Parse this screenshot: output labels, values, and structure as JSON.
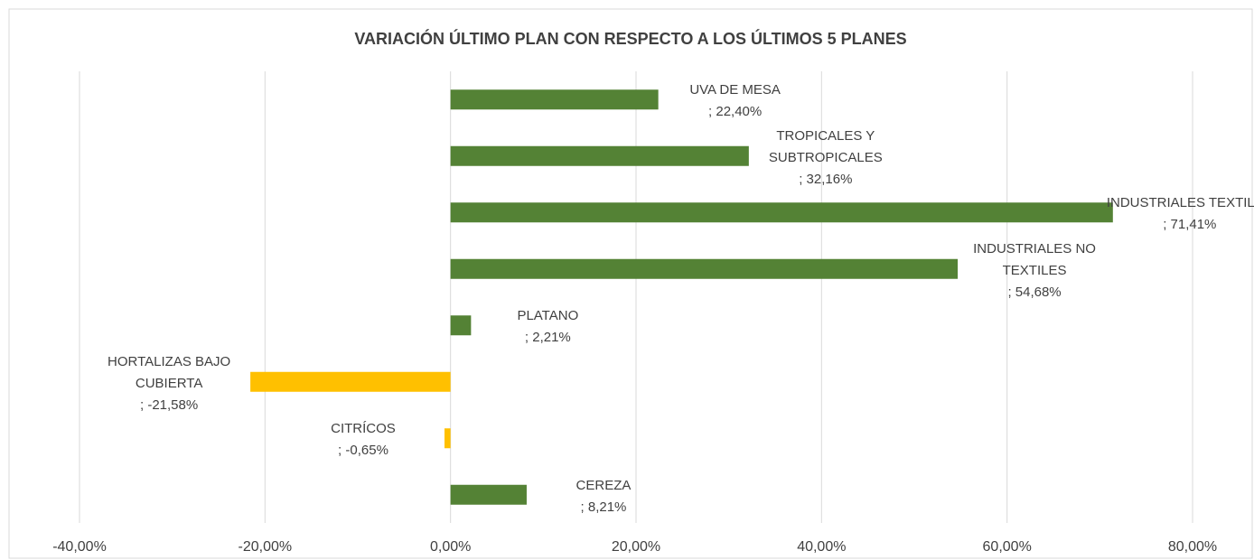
{
  "chart_data": {
    "type": "barh",
    "title": "VARIACIÓN  ÚLTIMO PLAN CON RESPECTO A LOS ÚLTIMOS 5 PLANES",
    "categories": [
      "UVA DE MESA",
      "TROPICALES Y SUBTROPICALES",
      "INDUSTRIALES TEXTILES",
      "INDUSTRIALES NO TEXTILES",
      "PLATANO",
      "HORTALIZAS BAJO CUBIERTA",
      "CITRÍCOS",
      "CEREZA"
    ],
    "values": [
      22.4,
      32.16,
      71.41,
      54.68,
      2.21,
      -21.58,
      -0.65,
      8.21
    ],
    "value_labels": [
      "; 22,40%",
      "; 32,16%",
      "; 71,41%",
      "; 54,68%",
      "; 2,21%",
      "; -21,58%",
      "; -0,65%",
      "; 8,21%"
    ],
    "color": "#548235",
    "negative_color": "#ffc000",
    "xlim": [
      -40,
      80
    ],
    "xticks": [
      {
        "value": -40,
        "label": "-40,00%"
      },
      {
        "value": -20,
        "label": "-20,00%"
      },
      {
        "value": 0,
        "label": "0,00%"
      },
      {
        "value": 20,
        "label": "20,00%"
      },
      {
        "value": 40,
        "label": "40,00%"
      },
      {
        "value": 60,
        "label": "60,00%"
      },
      {
        "value": 80,
        "label": "80,00%"
      }
    ],
    "grid": true
  }
}
